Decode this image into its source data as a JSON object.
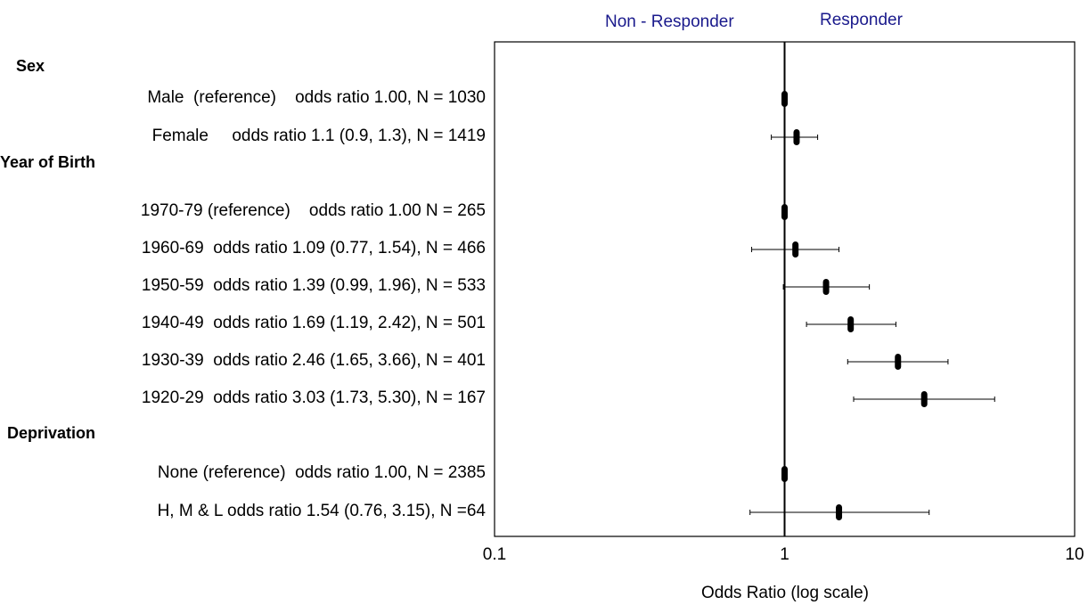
{
  "chart_data": {
    "type": "forest",
    "scale": "log",
    "xlabel": "Odds Ratio  (log scale)",
    "xlim": [
      0.1,
      10
    ],
    "xticks": [
      {
        "value": 0.1,
        "label": "0.1"
      },
      {
        "value": 1,
        "label": "1"
      },
      {
        "value": 10,
        "label": "10"
      }
    ],
    "reference_line": 1,
    "direction_labels": {
      "left": "Non - Responder",
      "right": "Responder"
    },
    "sections": [
      {
        "name": "Sex",
        "rows": [
          {
            "label": "Male  (reference)    odds ratio 1.00, N = 1030",
            "or": 1.0,
            "ci": null
          },
          {
            "label": "Female     odds ratio 1.1 (0.9, 1.3), N = 1419",
            "or": 1.1,
            "ci": [
              0.9,
              1.3
            ]
          }
        ]
      },
      {
        "name": "Year of Birth",
        "rows": [
          {
            "label": "1970-79 (reference)    odds ratio 1.00 N = 265",
            "or": 1.0,
            "ci": null
          },
          {
            "label": "1960-69  odds ratio 1.09 (0.77, 1.54), N = 466",
            "or": 1.09,
            "ci": [
              0.77,
              1.54
            ]
          },
          {
            "label": "1950-59  odds ratio 1.39 (0.99, 1.96), N = 533",
            "or": 1.39,
            "ci": [
              0.99,
              1.96
            ]
          },
          {
            "label": "1940-49  odds ratio 1.69 (1.19, 2.42), N = 501",
            "or": 1.69,
            "ci": [
              1.19,
              2.42
            ]
          },
          {
            "label": "1930-39  odds ratio 2.46 (1.65, 3.66), N = 401",
            "or": 2.46,
            "ci": [
              1.65,
              3.66
            ]
          },
          {
            "label": "1920-29  odds ratio 3.03 (1.73, 5.30), N = 167",
            "or": 3.03,
            "ci": [
              1.73,
              5.3
            ]
          }
        ]
      },
      {
        "name": "Deprivation",
        "rows": [
          {
            "label": "None (reference)  odds ratio 1.00, N = 2385",
            "or": 1.0,
            "ci": null
          },
          {
            "label": "H, M & L odds ratio 1.54 (0.76, 3.15), N =64",
            "or": 1.54,
            "ci": [
              0.76,
              3.15
            ]
          }
        ]
      }
    ]
  }
}
